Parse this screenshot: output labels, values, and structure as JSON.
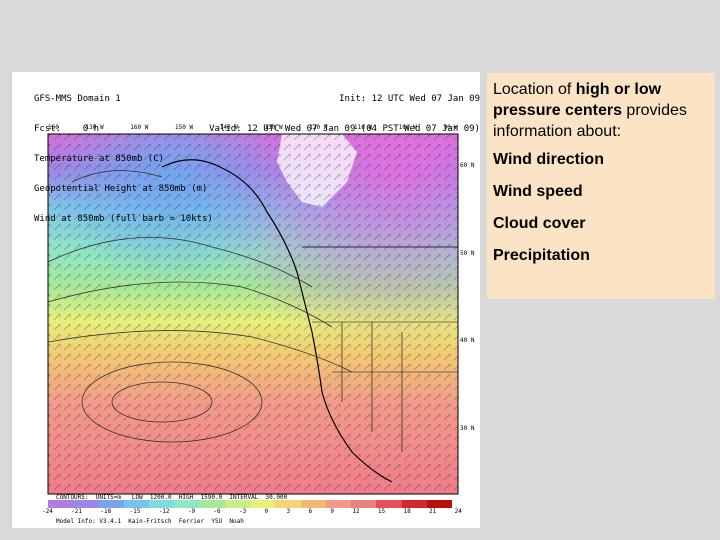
{
  "map": {
    "header_left": [
      "GFS-MMS Domain 1",
      "Fcst:    0 h",
      "Temperature at 850mb (C)",
      "Geopotential Height at 850mb (m)",
      "Wind at 850mb (full barb = 10kts)"
    ],
    "header_right": [
      "Init: 12 UTC Wed 07 Jan 09",
      "Valid: 12 UTC Wed 07 Jan 09 (04 PST Wed 07 Jan 09)"
    ],
    "top_lon_labels": [
      "160",
      "130 W",
      "160 W",
      "150 W",
      "140 W",
      "130 W",
      "120 W",
      "110 W",
      "100 W",
      "90 W"
    ],
    "right_lat_labels": [
      "60 N",
      "50 N",
      "40 N",
      "30 N"
    ],
    "contour_info": "CONTOURS:  UNITS=m   LOW  1200.0  HIGH  1590.0  INTERVAL  30.000",
    "colorbar_ticks": [
      "-24",
      "-21",
      "-18",
      "-15",
      "-12",
      "-9",
      "-6",
      "-3",
      "0",
      "3",
      "6",
      "9",
      "12",
      "15",
      "18",
      "21",
      "24"
    ],
    "footer": "Model Info: V3.4.1  Kain-Fritsch  Ferrier  YSU  Noah"
  },
  "callout": {
    "question_part1": "Location of ",
    "question_bold": "high or low pressure centers",
    "question_part2": " provides information about:",
    "options": [
      "Wind direction",
      "Wind speed",
      "Cloud cover",
      "Precipitation"
    ]
  },
  "colors": {
    "slide_bg": "#d9d9d9",
    "callout_bg": "#fbe3c6"
  }
}
